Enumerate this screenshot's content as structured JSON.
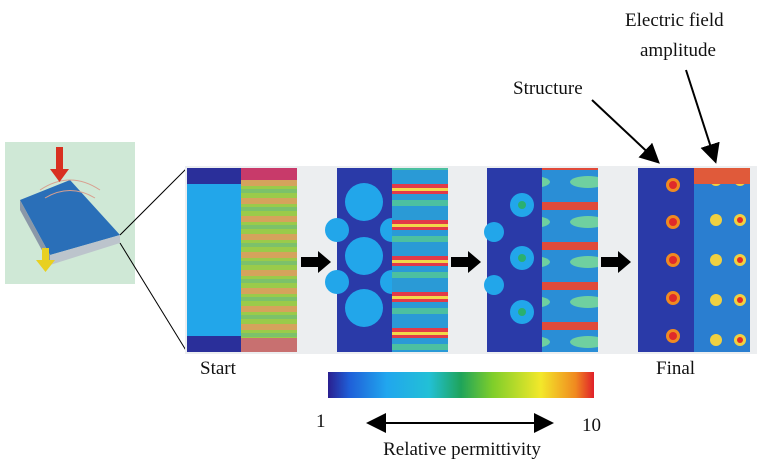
{
  "annotations": {
    "field": [
      "Electric field",
      "amplitude"
    ],
    "structure": "Structure",
    "start": "Start",
    "final": "Final"
  },
  "colorbar": {
    "min": "1",
    "max": "10",
    "label": "Relative permittivity"
  }
}
